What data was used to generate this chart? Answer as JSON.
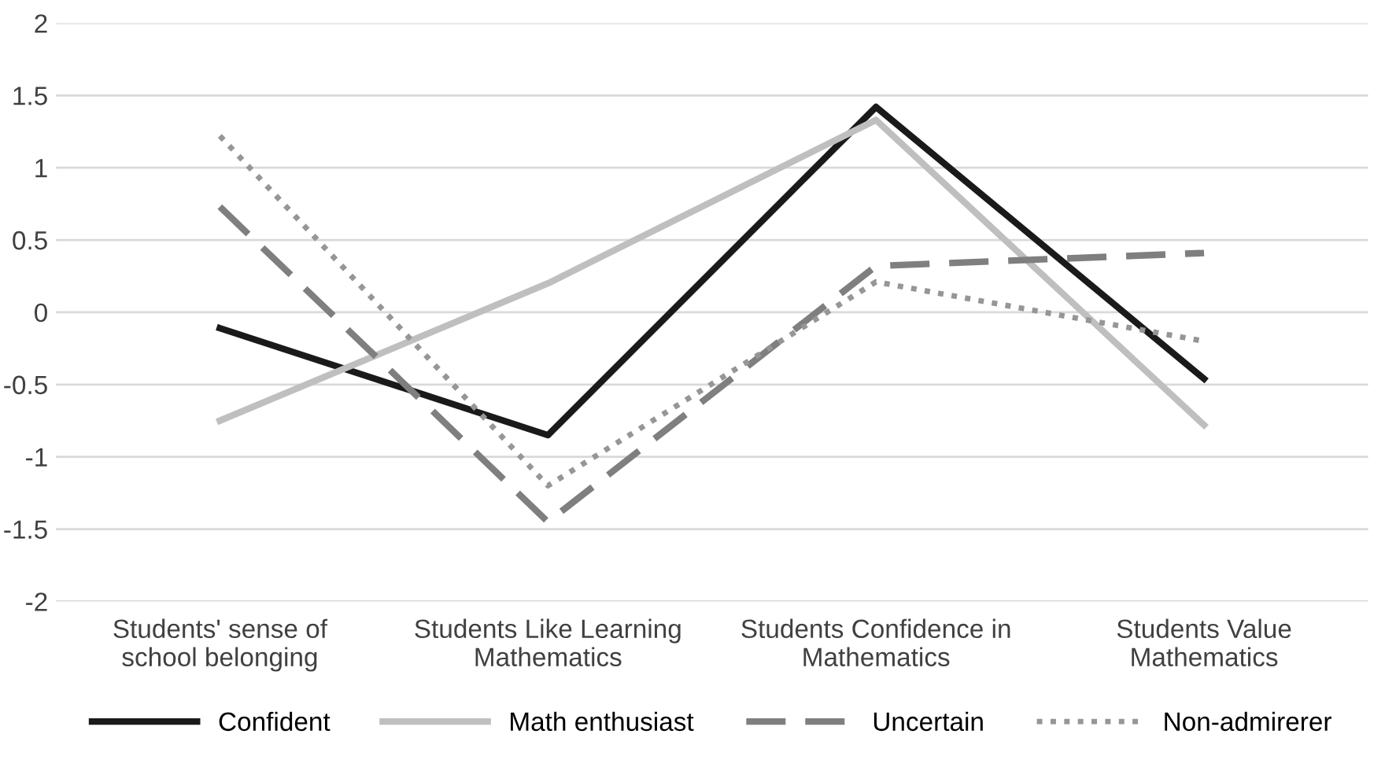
{
  "chart_data": {
    "type": "line",
    "categories": [
      "Students' sense of school belonging",
      "Students Like Learning Mathematics",
      "Students Confidence in Mathematics",
      "Students Value Mathematics"
    ],
    "series": [
      {
        "name": "Confident",
        "color": "#1a1a1a",
        "line_style": "solid",
        "values": [
          -0.11,
          -0.85,
          1.42,
          -0.46
        ]
      },
      {
        "name": "Math enthusiast",
        "color": "#bfbfbf",
        "line_style": "solid",
        "values": [
          -0.75,
          0.2,
          1.33,
          -0.78
        ]
      },
      {
        "name": "Uncertain",
        "color": "#7f7f7f",
        "line_style": "dashed",
        "values": [
          0.73,
          -1.45,
          0.32,
          0.41
        ]
      },
      {
        "name": "Non-admirerer",
        "color": "#969696",
        "line_style": "dotted",
        "values": [
          1.22,
          -1.2,
          0.21,
          -0.2
        ]
      }
    ],
    "ylim": [
      -2,
      2
    ],
    "yticks": [
      -2,
      -1.5,
      -1,
      -0.5,
      0,
      0.5,
      1,
      1.5,
      2
    ],
    "grid": "y",
    "legend": "bottom"
  }
}
